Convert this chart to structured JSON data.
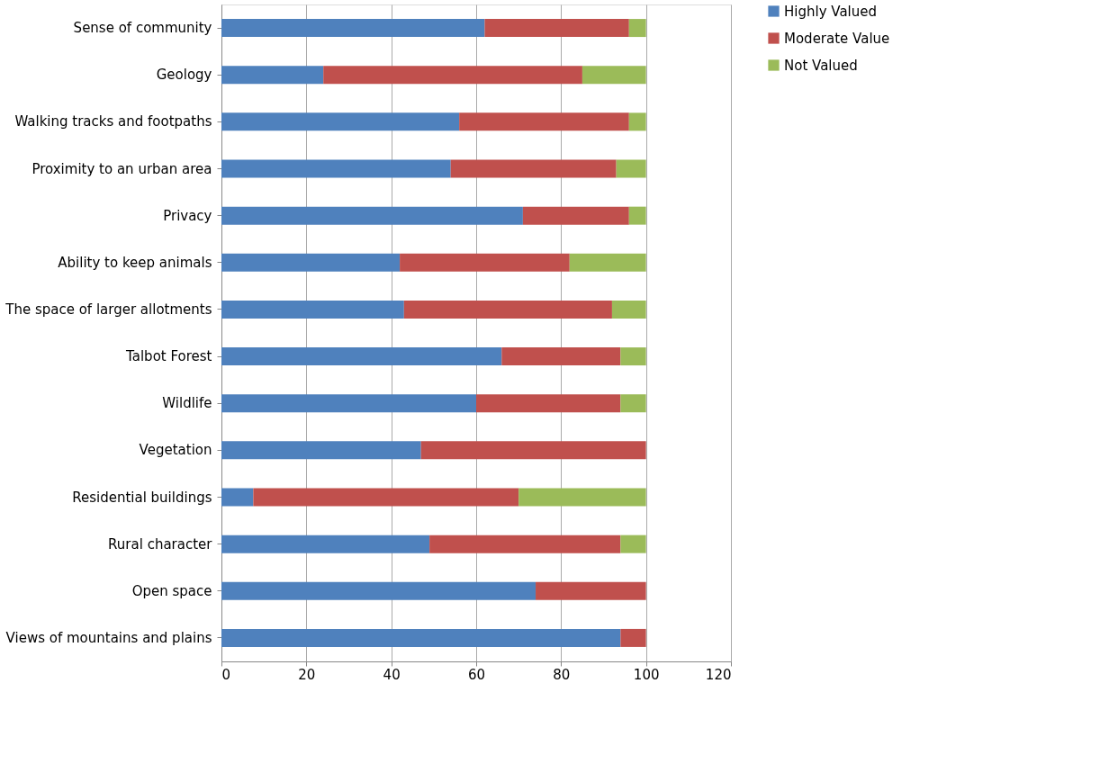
{
  "chart_data": {
    "type": "bar",
    "orientation": "horizontal",
    "stacked": true,
    "categories": [
      "Sense of community",
      "Geology",
      "Walking tracks and footpaths",
      "Proximity to an urban area",
      "Privacy",
      "Ability to keep animals",
      "The space of larger allotments",
      "Talbot Forest",
      "Wildlife",
      "Vegetation",
      "Residential buildings",
      "Rural character",
      "Open space",
      "Views of mountains and plains"
    ],
    "series": [
      {
        "name": "Highly Valued",
        "color": "#4f81bd",
        "values": [
          62,
          24,
          56,
          54,
          71,
          42,
          43,
          66,
          60,
          47,
          7.5,
          49,
          74,
          94
        ]
      },
      {
        "name": "Moderate Value",
        "color": "#c0504d",
        "values": [
          34,
          61,
          40,
          39,
          25,
          40,
          49,
          28,
          34,
          53,
          62.5,
          45,
          26,
          6
        ]
      },
      {
        "name": "Not Valued",
        "color": "#9bbb59",
        "values": [
          4,
          15,
          4,
          7,
          4,
          18,
          8,
          6,
          6,
          null,
          30,
          6,
          null,
          null
        ]
      }
    ],
    "xlim": [
      0,
      120
    ],
    "xticks": [
      0,
      20,
      40,
      60,
      80,
      100,
      120
    ],
    "grid": "x",
    "legend": "right"
  }
}
